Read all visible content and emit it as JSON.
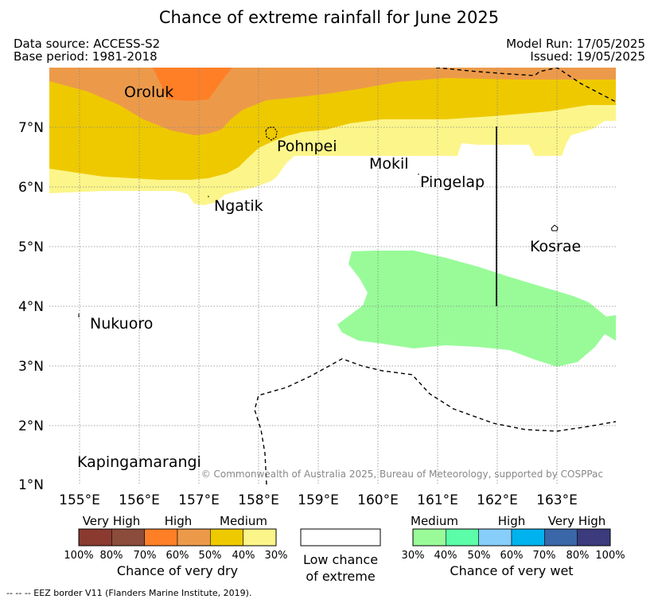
{
  "title": "Chance of extreme rainfall for June 2025",
  "meta": {
    "data_source": "Data source: ACCESS-S2",
    "base_period": "Base period: 1981-2018",
    "model_run": "Model Run: 17/05/2025",
    "issued": "Issued: 19/05/2025"
  },
  "map": {
    "lon_ticks": [
      "155°E",
      "156°E",
      "157°E",
      "158°E",
      "159°E",
      "160°E",
      "161°E",
      "162°E",
      "163°E"
    ],
    "lat_ticks": [
      "7°N",
      "6°N",
      "5°N",
      "4°N",
      "3°N",
      "2°N",
      "1°N"
    ],
    "places": {
      "oroluk": "Oroluk",
      "pohnpei": "Pohnpei",
      "mokil": "Mokil",
      "pingelap": "Pingelap",
      "ngatik": "Ngatik",
      "kosrae": "Kosrae",
      "nukuoro": "Nukuoro",
      "kapingamarangi": "Kapingamarangi"
    },
    "copyright": "© Commonwealth of Australia 2025, Bureau of Meteorology, supported by COSPPac",
    "colors": {
      "dry_70_80": "#f78c30",
      "dry_60_70": "#ff7f27",
      "dry_50_60": "#ec9a4a",
      "dry_40_50": "#eec900",
      "dry_30_40": "#fcf58a",
      "wet_30_40": "#98fb98",
      "eez_border": "#000000"
    }
  },
  "legend": {
    "dry": {
      "categories": [
        "Very High",
        "High",
        "Medium"
      ],
      "percent_labels": [
        "100%",
        "80%",
        "70%",
        "60%",
        "50%",
        "40%",
        "30%"
      ],
      "colors": [
        "#8b3a30",
        "#8b4c3b",
        "#ff7f27",
        "#ec9a4a",
        "#eec900",
        "#fcf58a"
      ],
      "title": "Chance of very dry"
    },
    "neutral": {
      "line1": "Low chance",
      "line2": "of extreme"
    },
    "wet": {
      "categories": [
        "Medium",
        "High",
        "Very High"
      ],
      "percent_labels": [
        "30%",
        "40%",
        "50%",
        "60%",
        "70%",
        "80%",
        "100%"
      ],
      "colors": [
        "#98fb98",
        "#5cfda9",
        "#87cefa",
        "#00b2ee",
        "#3a67a8",
        "#3b3b7d"
      ],
      "title": "Chance of very wet"
    }
  },
  "eez_note": "--  --  -- EEZ border V11 (Flanders Marine Institute, 2019)."
}
